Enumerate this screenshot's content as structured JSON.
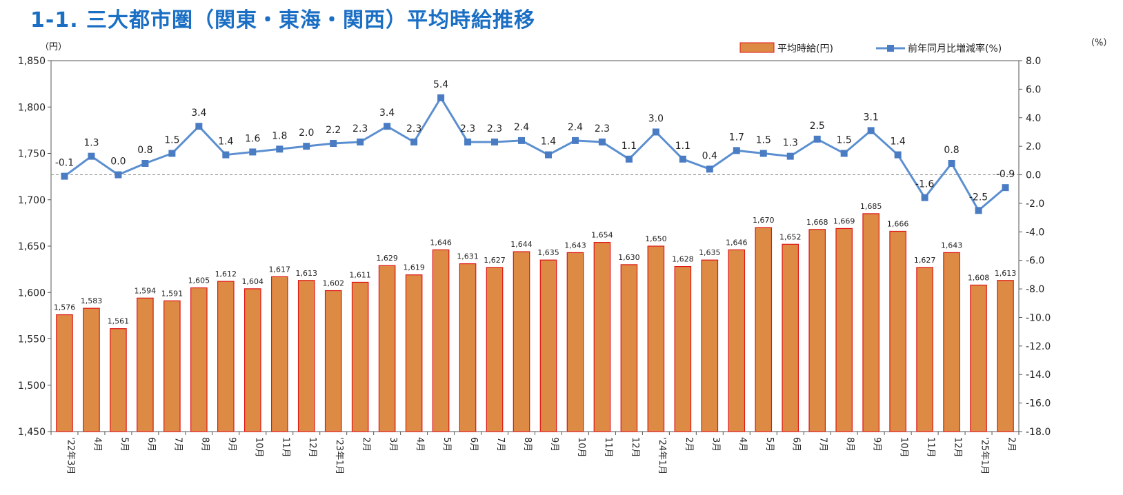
{
  "title": "1-1. 三大都市圏（関東・東海・関西）平均時給推移",
  "colors": {
    "title": "#1a6fc4",
    "bar_fill": "#dd8a44",
    "bar_stroke": "#e01414",
    "line": "#5b8fd0",
    "marker": "#4a7cc4"
  },
  "chart_data": {
    "type": "bar",
    "categories": [
      "'22年3月",
      "4月",
      "5月",
      "6月",
      "7月",
      "8月",
      "9月",
      "10月",
      "11月",
      "12月",
      "'23年1月",
      "2月",
      "3月",
      "4月",
      "5月",
      "6月",
      "7月",
      "8月",
      "9月",
      "10月",
      "11月",
      "12月",
      "'24年1月",
      "2月",
      "3月",
      "4月",
      "5月",
      "6月",
      "7月",
      "8月",
      "9月",
      "10月",
      "11月",
      "12月",
      "'25年1月",
      "2月"
    ],
    "series": [
      {
        "name": "平均時給(円)",
        "type": "bar",
        "axis": "left",
        "values": [
          1576,
          1583,
          1561,
          1594,
          1591,
          1605,
          1612,
          1604,
          1617,
          1613,
          1602,
          1611,
          1629,
          1619,
          1646,
          1631,
          1627,
          1644,
          1635,
          1643,
          1654,
          1630,
          1650,
          1628,
          1635,
          1646,
          1670,
          1652,
          1668,
          1669,
          1685,
          1666,
          1627,
          1643,
          1608,
          1613
        ],
        "labels": [
          "1,576",
          "1,583",
          "1,561",
          "1,594",
          "1,591",
          "1,605",
          "1,612",
          "1,604",
          "1,617",
          "1,613",
          "1,602",
          "1,611",
          "1,629",
          "1,619",
          "1,646",
          "1,631",
          "1,627",
          "1,644",
          "1,635",
          "1,643",
          "1,654",
          "1,630",
          "1,650",
          "1,628",
          "1,635",
          "1,646",
          "1,670",
          "1,652",
          "1,668",
          "1,669",
          "1,685",
          "1,666",
          "1,627",
          "1,643",
          "1,608",
          "1,613"
        ]
      },
      {
        "name": "前年同月比増減率(%)",
        "type": "line",
        "axis": "right",
        "values": [
          -0.1,
          1.3,
          0.0,
          0.8,
          1.5,
          3.4,
          1.4,
          1.6,
          1.8,
          2.0,
          2.2,
          2.3,
          3.4,
          2.3,
          5.4,
          2.3,
          2.3,
          2.4,
          1.4,
          2.4,
          2.3,
          1.1,
          3.0,
          1.1,
          0.4,
          1.7,
          1.5,
          1.3,
          2.5,
          1.5,
          3.1,
          1.4,
          -1.6,
          0.8,
          -2.5,
          -0.9
        ],
        "labels": [
          "-0.1",
          "1.3",
          "0.0",
          "0.8",
          "1.5",
          "3.4",
          "1.4",
          "1.6",
          "1.8",
          "2.0",
          "2.2",
          "2.3",
          "3.4",
          "2.3",
          "5.4",
          "2.3",
          "2.3",
          "2.4",
          "1.4",
          "2.4",
          "2.3",
          "1.1",
          "3.0",
          "1.1",
          "0.4",
          "1.7",
          "1.5",
          "1.3",
          "2.5",
          "1.5",
          "3.1",
          "1.4",
          "-1.6",
          "0.8",
          "-2.5",
          "-0.9"
        ]
      }
    ],
    "left_axis": {
      "unit": "（円）",
      "ylim": [
        1450,
        1850
      ],
      "ticks": [
        1450,
        1500,
        1550,
        1600,
        1650,
        1700,
        1750,
        1800,
        1850
      ],
      "tick_labels": [
        "1,450",
        "1,500",
        "1,550",
        "1,600",
        "1,650",
        "1,700",
        "1,750",
        "1,800",
        "1,850"
      ]
    },
    "right_axis": {
      "unit": "（%）",
      "ylim": [
        -18,
        8
      ],
      "ticks": [
        -18,
        -16,
        -14,
        -12,
        -10,
        -8,
        -6,
        -4,
        -2,
        0,
        2,
        4,
        6,
        8
      ],
      "tick_labels": [
        "-18.0",
        "-16.0",
        "-14.0",
        "-12.0",
        "-10.0",
        "-8.0",
        "-6.0",
        "-4.0",
        "-2.0",
        "0.0",
        "2.0",
        "4.0",
        "6.0",
        "8.0"
      ]
    },
    "zero_reference_line": true,
    "grid": false,
    "legend_position": "top-right"
  }
}
